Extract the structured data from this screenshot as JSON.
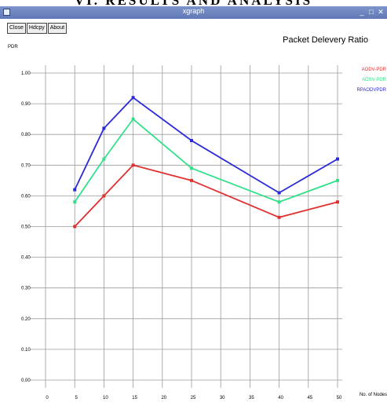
{
  "page": {
    "heading": "VI. RESULTS AND ANALYSIS"
  },
  "window": {
    "title": "xgraph",
    "minimize_label": "_",
    "maximize_label": "□",
    "close_label": "✕"
  },
  "toolbar": {
    "close_label": "Close",
    "hardcopy_label": "Hdcpy",
    "about_label": "About"
  },
  "chart_data": {
    "type": "line",
    "title": "Packet Delevery Ratio",
    "ylabel": "PDR",
    "xlabel": "No. of Nodes",
    "x_ticks": [
      0,
      5,
      10,
      15,
      20,
      25,
      30,
      35,
      40,
      45,
      50
    ],
    "y_ticks": [
      "0.00",
      "0.10",
      "0.20",
      "0.30",
      "0.40",
      "0.50",
      "0.60",
      "0.70",
      "0.80",
      "0.90",
      "1.00"
    ],
    "xlim": [
      0,
      50
    ],
    "ylim": [
      0,
      1.0
    ],
    "grid": true,
    "legend_position": "top-right",
    "series": [
      {
        "name": "AODV-PDR",
        "color": "#e03030",
        "x": [
          5,
          10,
          15,
          25,
          40,
          50
        ],
        "y": [
          0.5,
          0.6,
          0.7,
          0.65,
          0.53,
          0.58
        ]
      },
      {
        "name": "AOSV-PDR",
        "color": "#33e08a",
        "x": [
          5,
          10,
          15,
          25,
          40,
          50
        ],
        "y": [
          0.58,
          0.72,
          0.85,
          0.69,
          0.58,
          0.65
        ]
      },
      {
        "name": "RPAODVPDR",
        "color": "#2a2ad8",
        "x": [
          5,
          10,
          15,
          25,
          40,
          50
        ],
        "y": [
          0.62,
          0.82,
          0.92,
          0.78,
          0.61,
          0.72
        ]
      }
    ]
  }
}
